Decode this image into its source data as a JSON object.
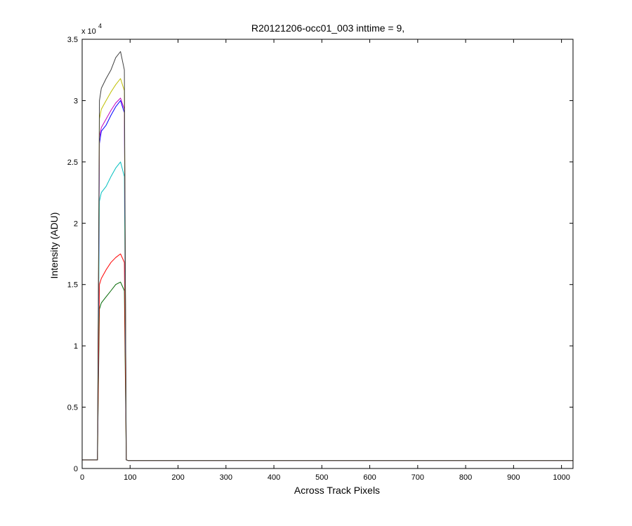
{
  "chart_data": {
    "type": "line",
    "title": "R20121206-occ01_003 inttime = 9,",
    "xlabel": "Across Track Pixels",
    "ylabel": "Intensity (ADU)",
    "y_exponent_label": "x 10",
    "y_exponent_power": "4",
    "xlim": [
      0,
      1024
    ],
    "ylim": [
      0,
      35000
    ],
    "x_ticks": [
      0,
      100,
      200,
      300,
      400,
      500,
      600,
      700,
      800,
      900,
      1000
    ],
    "x_tick_labels": [
      "0",
      "100",
      "200",
      "300",
      "400",
      "500",
      "600",
      "700",
      "800",
      "900",
      "1000"
    ],
    "y_ticks": [
      0,
      5000,
      10000,
      15000,
      20000,
      25000,
      30000,
      35000
    ],
    "y_tick_labels": [
      "0",
      "0.5",
      "1",
      "1.5",
      "2",
      "2.5",
      "3",
      "3.5"
    ],
    "grid": false,
    "legend": "none",
    "x": [
      0,
      32,
      36,
      40,
      50,
      60,
      70,
      80,
      88,
      92,
      96,
      110,
      150,
      300,
      500,
      700,
      900,
      1024
    ],
    "series": [
      {
        "color": "#006600",
        "values": [
          700,
          700,
          13000,
          13500,
          14000,
          14500,
          15000,
          15200,
          14500,
          700,
          650,
          650,
          650,
          650,
          650,
          650,
          650,
          650
        ]
      },
      {
        "color": "#ff0000",
        "values": [
          700,
          700,
          15000,
          15500,
          16200,
          16800,
          17200,
          17500,
          16800,
          700,
          650,
          650,
          650,
          650,
          650,
          650,
          650,
          650
        ]
      },
      {
        "color": "#00bfbf",
        "values": [
          700,
          700,
          21800,
          22500,
          23000,
          23800,
          24500,
          25000,
          23800,
          700,
          650,
          650,
          650,
          650,
          650,
          650,
          650,
          650
        ]
      },
      {
        "color": "#0000ff",
        "values": [
          700,
          700,
          26500,
          27500,
          28000,
          28800,
          29500,
          30000,
          29000,
          700,
          650,
          650,
          650,
          650,
          650,
          650,
          650,
          650
        ]
      },
      {
        "color": "#bf00bf",
        "values": [
          700,
          700,
          27000,
          27800,
          28500,
          29200,
          29800,
          30200,
          29300,
          700,
          650,
          650,
          650,
          650,
          650,
          650,
          650,
          650
        ]
      },
      {
        "color": "#bfbf00",
        "values": [
          700,
          700,
          28500,
          29300,
          30000,
          30700,
          31300,
          31800,
          30800,
          700,
          650,
          650,
          650,
          650,
          650,
          650,
          650,
          650
        ]
      },
      {
        "color": "#404040",
        "values": [
          700,
          700,
          30000,
          31000,
          31800,
          32500,
          33500,
          34000,
          32500,
          700,
          650,
          650,
          650,
          650,
          650,
          650,
          650,
          650
        ]
      }
    ]
  }
}
